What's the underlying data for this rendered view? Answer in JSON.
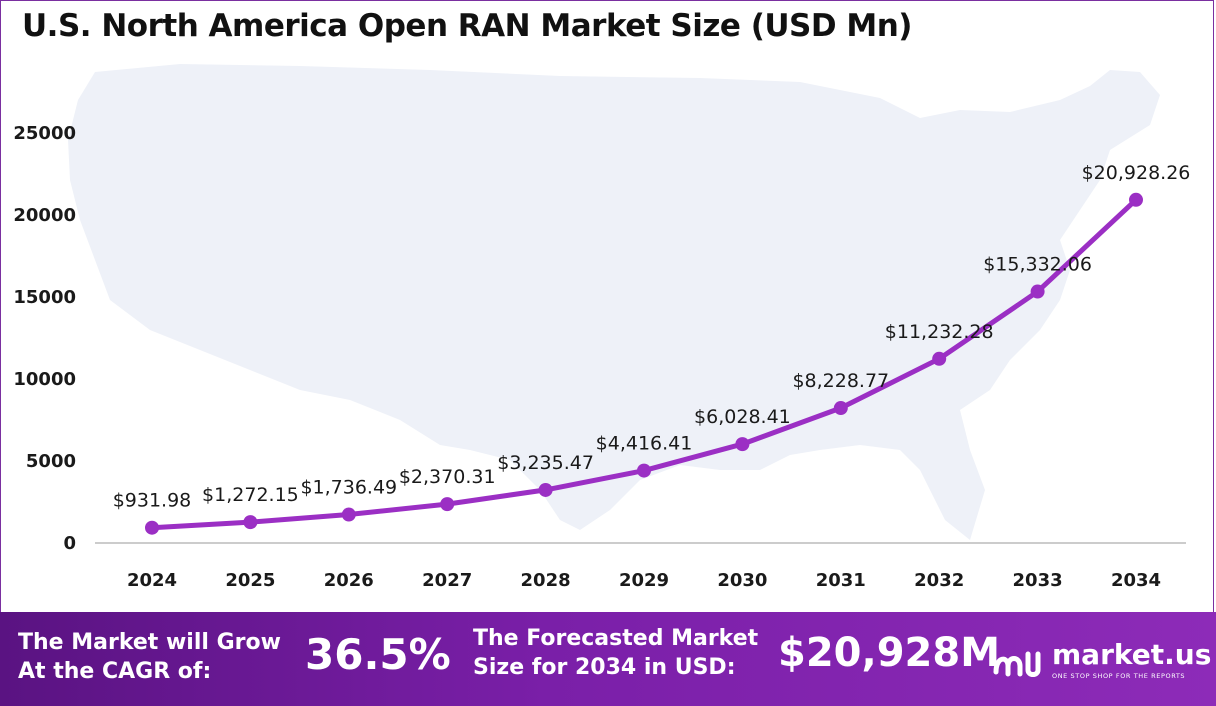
{
  "chart_data": {
    "type": "line",
    "title": "U.S. North America Open RAN Market Size (USD Mn)",
    "xlabel": "",
    "ylabel": "",
    "categories": [
      "2024",
      "2025",
      "2026",
      "2027",
      "2028",
      "2029",
      "2030",
      "2031",
      "2032",
      "2033",
      "2034"
    ],
    "values": [
      931.98,
      1272.15,
      1736.49,
      2370.31,
      3235.47,
      4416.41,
      6028.41,
      8228.77,
      11232.28,
      15332.06,
      20928.26
    ],
    "data_labels": [
      "$931.98",
      "$1,272.15",
      "$1,736.49",
      "$2,370.31",
      "$3,235.47",
      "$4,416.41",
      "$6,028.41",
      "$8,228.77",
      "$11,232.28",
      "$15,332.06",
      "$20,928.26"
    ],
    "y_ticks": [
      "0",
      "5000",
      "10000",
      "15000",
      "20000",
      "25000"
    ],
    "ylim": [
      0,
      25000
    ],
    "grid": false,
    "legend": "none",
    "line_color": "#9b2fc4",
    "background_motif": "usa-map-silhouette"
  },
  "footer": {
    "cagr_label": "The Market will Grow At the CAGR of:",
    "cagr_value": "36.5%",
    "forecast_label": "The Forecasted Market Size for 2034 in USD:",
    "forecast_value": "$20,928M",
    "brand_name": "market.us",
    "brand_tagline": "ONE STOP SHOP FOR THE REPORTS",
    "brand_icon": "market-us-logo-icon",
    "background_color": "#6a1a94"
  }
}
